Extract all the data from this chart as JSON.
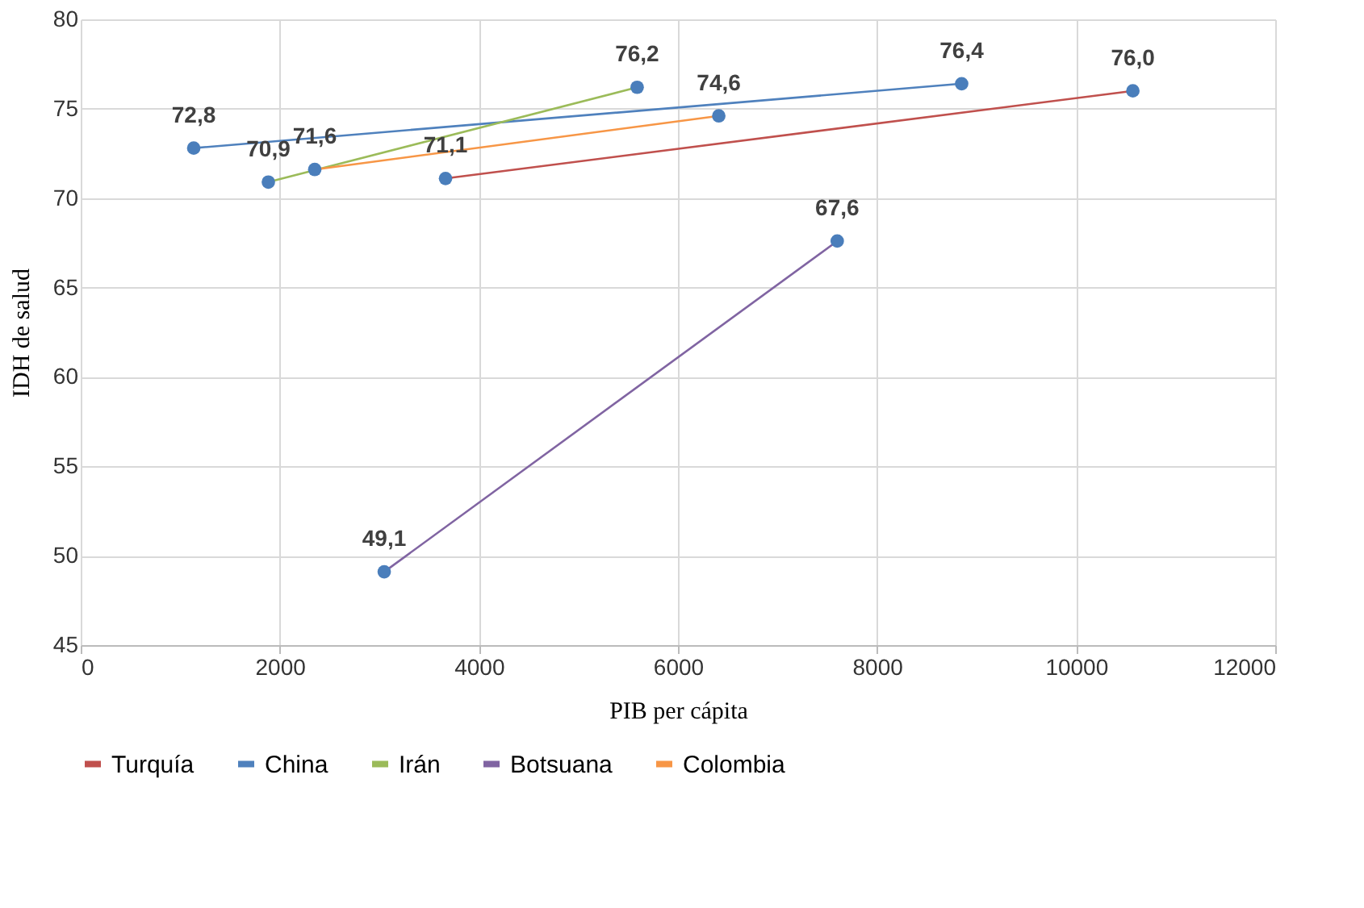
{
  "chart_data": {
    "type": "line",
    "xlabel": "PIB per cápita",
    "ylabel": "IDH de salud",
    "xlim": [
      0,
      12000
    ],
    "xticks": [
      0,
      2000,
      4000,
      6000,
      8000,
      10000,
      12000
    ],
    "ylim": [
      45,
      80
    ],
    "yticks": [
      45,
      50,
      55,
      60,
      65,
      70,
      75,
      80
    ],
    "grid": true,
    "legend": "bottom",
    "marker": "circle",
    "line_style": "solid",
    "series": [
      {
        "name": "Turquía",
        "color": "#c0504d",
        "colors": [
          "#4a7ebb",
          "#4a7ebb"
        ],
        "x": [
          3665,
          10570
        ],
        "values": [
          71.1,
          76.0
        ],
        "value_labels": [
          "71,1",
          "76,0"
        ]
      },
      {
        "name": "China",
        "color": "#4f81bd",
        "colors": [
          "#4a7ebb",
          "#4a7ebb"
        ],
        "x": [
          1135,
          8850
        ],
        "values": [
          72.8,
          76.4
        ],
        "value_labels": [
          "72,8",
          "76,4"
        ]
      },
      {
        "name": "Irán",
        "color": "#9bbb59",
        "colors": [
          "#4a7ebb",
          "#4a7ebb"
        ],
        "x": [
          1885,
          5590
        ],
        "values": [
          70.9,
          76.2
        ],
        "value_labels": [
          "70,9",
          "76,2"
        ]
      },
      {
        "name": "Botsuana",
        "color": "#8064a2",
        "colors": [
          "#4a7ebb",
          "#4a7ebb"
        ],
        "x": [
          3049,
          7600
        ],
        "values": [
          49.1,
          67.6
        ],
        "value_labels": [
          "49,1",
          "67,6"
        ]
      },
      {
        "name": "Colombia",
        "color": "#f79646",
        "colors": [
          "#4a7ebb",
          "#4a7ebb"
        ],
        "x": [
          2351,
          6410
        ],
        "values": [
          71.6,
          74.6
        ],
        "value_labels": [
          "71,6",
          "74,6"
        ]
      }
    ]
  }
}
